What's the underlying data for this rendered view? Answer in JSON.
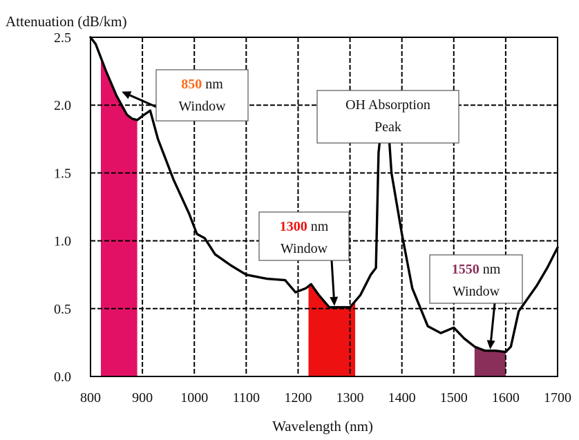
{
  "chart_data": {
    "type": "line",
    "ylabel": "Attenuation (dB/km)",
    "xlabel": "Wavelength (nm)",
    "xlim": [
      800,
      1700
    ],
    "ylim": [
      0,
      2.5
    ],
    "xticks": [
      "800",
      "900",
      "1000",
      "1100",
      "1200",
      "1300",
      "1400",
      "1500",
      "1600",
      "1700"
    ],
    "yticks": [
      "0.0",
      "0.5",
      "1.0",
      "1.5",
      "2.0",
      "2.5"
    ],
    "xtick_values": [
      800,
      900,
      1000,
      1100,
      1200,
      1300,
      1400,
      1500,
      1600,
      1700
    ],
    "ytick_values": [
      0,
      0.5,
      1.0,
      1.5,
      2.0,
      2.5
    ],
    "grid": true,
    "series": [
      {
        "x": [
          800,
          810,
          830,
          850,
          870,
          880,
          890,
          900,
          915,
          930,
          960,
          990,
          1005,
          1020,
          1040,
          1070,
          1100,
          1140,
          1175,
          1195,
          1215,
          1225,
          1240,
          1260,
          1300,
          1320,
          1340,
          1350,
          1355,
          1362,
          1368,
          1372,
          1380,
          1400,
          1420,
          1450,
          1475,
          1500,
          1520,
          1540,
          1560,
          1580,
          1600,
          1610,
          1625,
          1660,
          1680,
          1700
        ],
        "y": [
          2.5,
          2.45,
          2.25,
          2.07,
          1.93,
          1.9,
          1.89,
          1.92,
          1.96,
          1.75,
          1.45,
          1.2,
          1.05,
          1.02,
          0.9,
          0.82,
          0.75,
          0.72,
          0.71,
          0.62,
          0.65,
          0.68,
          0.6,
          0.51,
          0.51,
          0.6,
          0.75,
          0.8,
          1.65,
          1.9,
          2.05,
          1.95,
          1.5,
          1.05,
          0.65,
          0.37,
          0.32,
          0.36,
          0.28,
          0.22,
          0.19,
          0.19,
          0.18,
          0.22,
          0.48,
          0.67,
          0.8,
          0.95
        ]
      }
    ],
    "windows": [
      {
        "x_start": 820,
        "x_end": 890,
        "color": "#e31166"
      },
      {
        "x_start": 1220,
        "x_end": 1310,
        "color": "#ee1111"
      },
      {
        "x_start": 1540,
        "x_end": 1600,
        "color": "#8a2f5a"
      }
    ],
    "annotations": [
      {
        "lines": [
          [
            {
              "t": "850",
              "bold": true,
              "color": "#ff6a1a"
            },
            {
              "t": " nm"
            }
          ],
          [
            {
              "t": "Window"
            }
          ]
        ],
        "target": [
          860,
          2.1
        ]
      },
      {
        "lines": [
          [
            {
              "t": "OH Absorption"
            }
          ],
          [
            {
              "t": "Peak"
            }
          ]
        ],
        "target": [
          1368,
          2.04
        ]
      },
      {
        "lines": [
          [
            {
              "t": "1300",
              "bold": true,
              "color": "#ee1111"
            },
            {
              "t": " nm"
            }
          ],
          [
            {
              "t": "Window"
            }
          ]
        ],
        "target": [
          1270,
          0.52
        ]
      },
      {
        "lines": [
          [
            {
              "t": "1550",
              "bold": true,
              "color": "#8a2f5a"
            },
            {
              "t": " nm"
            }
          ],
          [
            {
              "t": "Window"
            }
          ]
        ],
        "target": [
          1570,
          0.2
        ]
      }
    ]
  }
}
